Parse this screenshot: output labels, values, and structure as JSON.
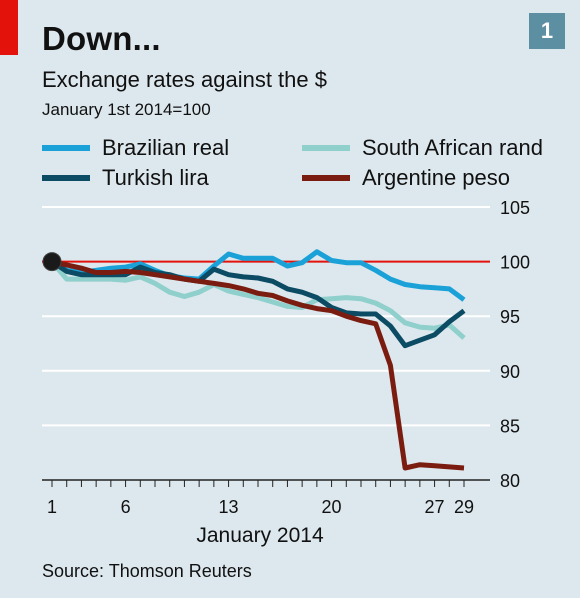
{
  "header": {
    "title": "Down...",
    "badge": "1",
    "subtitle": "Exchange rates against the $",
    "subtitle2": "January 1st 2014=100",
    "source": "Source: Thomson Reuters"
  },
  "colors": {
    "background": "#dde8ee",
    "accent_red": "#e3120b",
    "reference_line": "#e3120b",
    "grid": "#ffffff"
  },
  "chart_data": {
    "type": "line",
    "xlabel": "January 2014",
    "ylabel": "",
    "xlim": [
      1,
      29
    ],
    "ylim": [
      80,
      105
    ],
    "x_ticks": [
      1,
      6,
      13,
      20,
      27,
      29
    ],
    "y_ticks": [
      105,
      100,
      95,
      90,
      85,
      80
    ],
    "reference_value": 100,
    "grid": true,
    "legend_placement": "top",
    "series": [
      {
        "name": "Brazilian real",
        "color": "#1aa1d8",
        "x": [
          1,
          2,
          3,
          4,
          5,
          6,
          7,
          8,
          9,
          10,
          11,
          12,
          13,
          14,
          15,
          16,
          17,
          18,
          19,
          20,
          21,
          22,
          23,
          24,
          25,
          26,
          27,
          28,
          29
        ],
        "values": [
          100,
          99.2,
          99.0,
          99.2,
          99.4,
          99.5,
          99.8,
          99.2,
          98.7,
          98.5,
          98.4,
          99.6,
          100.7,
          100.3,
          100.3,
          100.3,
          99.6,
          99.9,
          100.9,
          100.1,
          99.9,
          99.9,
          99.2,
          98.4,
          97.9,
          97.7,
          97.6,
          97.5,
          96.5
        ]
      },
      {
        "name": "South African rand",
        "color": "#8fcfcc",
        "x": [
          1,
          2,
          3,
          4,
          5,
          6,
          7,
          8,
          9,
          10,
          11,
          12,
          13,
          14,
          15,
          16,
          17,
          18,
          19,
          20,
          21,
          22,
          23,
          24,
          25,
          26,
          27,
          28,
          29
        ],
        "values": [
          100,
          98.4,
          98.4,
          98.4,
          98.4,
          98.3,
          98.6,
          98.0,
          97.2,
          96.8,
          97.2,
          97.9,
          97.3,
          97.0,
          96.7,
          96.3,
          95.9,
          95.8,
          96.5,
          96.6,
          96.7,
          96.6,
          96.2,
          95.5,
          94.4,
          94.0,
          93.9,
          94.2,
          93.0
        ]
      },
      {
        "name": "Turkish lira",
        "color": "#0b4b63",
        "x": [
          1,
          2,
          3,
          4,
          5,
          6,
          7,
          8,
          9,
          10,
          11,
          12,
          13,
          14,
          15,
          16,
          17,
          18,
          19,
          20,
          21,
          22,
          23,
          24,
          25,
          26,
          27,
          28,
          29
        ],
        "values": [
          100,
          99.1,
          98.8,
          98.8,
          98.8,
          98.8,
          99.5,
          99.0,
          98.8,
          98.4,
          98.2,
          99.3,
          98.8,
          98.6,
          98.5,
          98.2,
          97.5,
          97.2,
          96.7,
          95.8,
          95.3,
          95.2,
          95.2,
          94.1,
          92.3,
          92.8,
          93.3,
          94.5,
          95.5
        ]
      },
      {
        "name": "Argentine peso",
        "color": "#7a1d10",
        "x": [
          1,
          2,
          3,
          4,
          5,
          6,
          7,
          8,
          9,
          10,
          11,
          12,
          13,
          14,
          15,
          16,
          17,
          18,
          19,
          20,
          21,
          22,
          23,
          24,
          25,
          26,
          27,
          28,
          29
        ],
        "values": [
          100,
          99.7,
          99.4,
          99.0,
          99.0,
          99.1,
          99.0,
          98.8,
          98.6,
          98.4,
          98.2,
          98.0,
          97.8,
          97.5,
          97.1,
          96.9,
          96.4,
          96.0,
          95.7,
          95.5,
          95.0,
          94.6,
          94.3,
          90.5,
          81.1,
          81.4,
          81.3,
          81.2,
          81.1
        ]
      }
    ]
  }
}
